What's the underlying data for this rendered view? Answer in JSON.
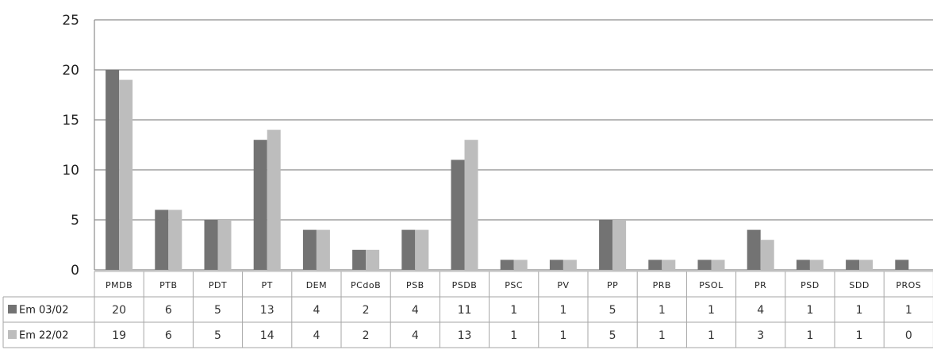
{
  "chart_data": {
    "type": "bar",
    "categories": [
      "PMDB",
      "PTB",
      "PDT",
      "PT",
      "DEM",
      "PCdoB",
      "PSB",
      "PSDB",
      "PSC",
      "PV",
      "PP",
      "PRB",
      "PSOL",
      "PR",
      "PSD",
      "SDD",
      "PROS"
    ],
    "series": [
      {
        "name": "Em 03/02",
        "values": [
          20,
          6,
          5,
          13,
          4,
          2,
          4,
          11,
          1,
          1,
          5,
          1,
          1,
          4,
          1,
          1,
          1
        ],
        "color": "#737373"
      },
      {
        "name": "Em 22/02",
        "values": [
          19,
          6,
          5,
          14,
          4,
          2,
          4,
          13,
          1,
          1,
          5,
          1,
          1,
          3,
          1,
          1,
          0
        ],
        "color": "#bdbdbd"
      }
    ],
    "yticks": [
      0,
      5,
      10,
      15,
      20,
      25
    ],
    "ylim": [
      0,
      25
    ],
    "grid": true,
    "legend": "data-table",
    "title": "",
    "xlabel": "",
    "ylabel": ""
  }
}
